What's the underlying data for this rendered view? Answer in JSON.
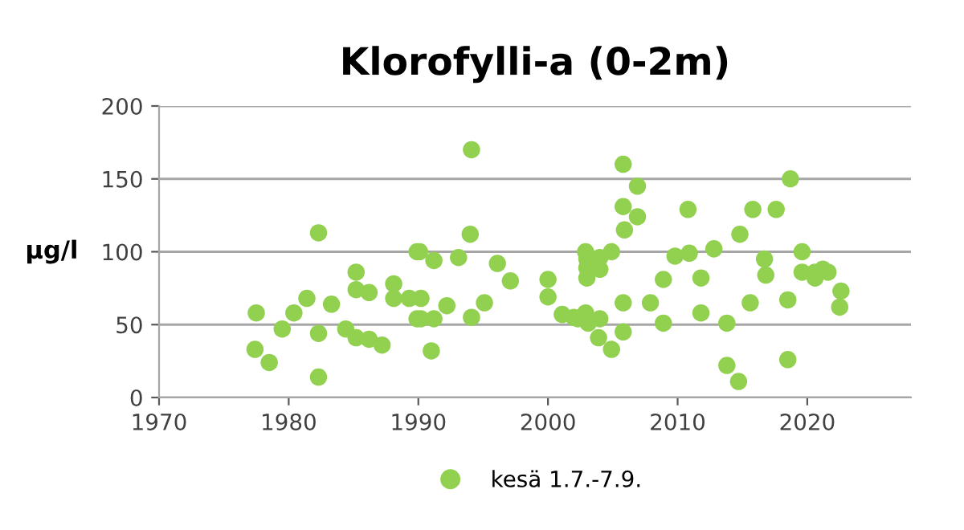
{
  "chart_data": {
    "type": "scatter",
    "title": "Klorofylli-a (0-2m)",
    "ylabel": "µg/l",
    "xlim": [
      1970,
      2028
    ],
    "xticks": [
      1970,
      1980,
      1990,
      2000,
      2010,
      2020
    ],
    "ylim": [
      0,
      200
    ],
    "yticks": [
      0,
      50,
      100,
      150,
      200
    ],
    "grid": "y",
    "legend": "bottom",
    "marker": "circle",
    "series": [
      {
        "name": "kesä 1.7.-7.9.",
        "color": "#92d050",
        "x": [
          1982.3,
          1977.5,
          1977.4,
          1978.5,
          1979.5,
          1980.4,
          1981.4,
          1982.3,
          1982.3,
          1983.3,
          1984.4,
          1985.2,
          1985.2,
          1985.2,
          1986.2,
          1986.2,
          1987.2,
          1988.1,
          1988.1,
          1989.3,
          1989.9,
          1989.9,
          1990.2,
          1990.1,
          1991.2,
          1990.2,
          1991.2,
          1991.0,
          1992.2,
          1993.1,
          1994.1,
          1994.0,
          1994.1,
          1995.1,
          1996.1,
          1997.1,
          2000.0,
          2000.0,
          2001.1,
          2002.0,
          2002.9,
          2003.0,
          2003.0,
          2003.0,
          2004.0,
          2004.0,
          2004.9,
          2002.3,
          2002.9,
          2003.1,
          2004.0,
          2003.9,
          2004.9,
          2005.8,
          2006.9,
          2005.8,
          2006.9,
          2005.9,
          2005.8,
          2005.8,
          2007.9,
          2008.9,
          2008.9,
          2009.8,
          2010.8,
          2010.9,
          2011.8,
          2011.8,
          2012.8,
          2013.8,
          2013.8,
          2014.7,
          2014.8,
          2015.6,
          2015.8,
          2016.7,
          2016.8,
          2017.6,
          2018.7,
          2018.5,
          2018.5,
          2019.6,
          2019.6,
          2020.6,
          2021.6,
          2020.6,
          2021.2,
          2022.6,
          2022.5
        ],
        "values": [
          113,
          58,
          33,
          24,
          47,
          58,
          68,
          44,
          14,
          64,
          47,
          41,
          86,
          74,
          72,
          40,
          36,
          78,
          68,
          68,
          100,
          54,
          68,
          100,
          94,
          54,
          54,
          32,
          63,
          96,
          170,
          112,
          55,
          65,
          92,
          80,
          81,
          69,
          57,
          55,
          100,
          95,
          89,
          82,
          88,
          96,
          100,
          54,
          58,
          51,
          54,
          41,
          33,
          160,
          145,
          131,
          124,
          115,
          65,
          45,
          65,
          81,
          51,
          97,
          129,
          99,
          82,
          58,
          102,
          51,
          22,
          11,
          112,
          65,
          129,
          95,
          84,
          129,
          150,
          67,
          26,
          100,
          86,
          86,
          86,
          82,
          88,
          73,
          62
        ]
      }
    ]
  }
}
